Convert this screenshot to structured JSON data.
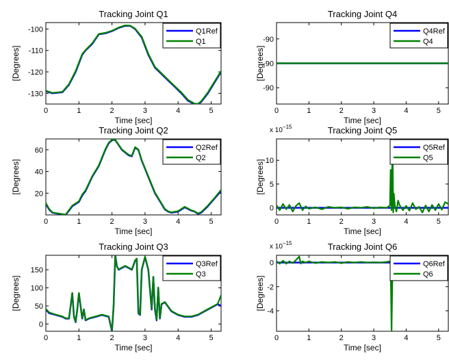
{
  "chart_data": [
    {
      "type": "line",
      "title": "Tracking Joint Q1",
      "xlabel": "Time [sec]",
      "ylabel": "[Degrees]",
      "xlim": [
        0,
        5.3
      ],
      "ylim": [
        -135,
        -97
      ],
      "xticks": [
        0,
        1,
        2,
        3,
        4,
        5
      ],
      "yticks": [
        -130,
        -120,
        -110,
        -100
      ],
      "ytick_labels": [
        "-130",
        "-120",
        "-110",
        "-100"
      ],
      "exponent_label": "",
      "legend_position": "top-right",
      "series": [
        {
          "name": "Q1Ref",
          "color": "#0000ff",
          "x": [
            0,
            0.2,
            0.5,
            0.7,
            0.9,
            1.1,
            1.2,
            1.4,
            1.6,
            1.8,
            2.0,
            2.2,
            2.4,
            2.55,
            2.7,
            2.9,
            3.1,
            3.3,
            3.5,
            3.7,
            3.9,
            4.1,
            4.3,
            4.5,
            4.6,
            4.7,
            4.9,
            5.1,
            5.3
          ],
          "y": [
            -129,
            -130,
            -129.5,
            -126,
            -120,
            -112,
            -110,
            -107,
            -102.5,
            -102,
            -101,
            -99.5,
            -98.5,
            -98.5,
            -100,
            -104,
            -112,
            -118,
            -121,
            -124,
            -127,
            -130,
            -133.5,
            -135,
            -135,
            -134,
            -130,
            -125,
            -120
          ]
        },
        {
          "name": "Q1",
          "color": "#008000",
          "x": [
            0,
            0.2,
            0.5,
            0.7,
            0.9,
            1.1,
            1.2,
            1.4,
            1.6,
            1.8,
            2.0,
            2.2,
            2.4,
            2.55,
            2.7,
            2.9,
            3.1,
            3.3,
            3.5,
            3.7,
            3.9,
            4.1,
            4.3,
            4.5,
            4.6,
            4.7,
            4.9,
            5.1,
            5.3
          ],
          "y": [
            -128.8,
            -129.8,
            -129.3,
            -125.7,
            -119.6,
            -111.7,
            -109.8,
            -106.7,
            -102.3,
            -101.8,
            -100.8,
            -99.3,
            -98.3,
            -98.4,
            -99.8,
            -103.6,
            -111.6,
            -117.7,
            -120.7,
            -123.7,
            -126.7,
            -129.6,
            -133.1,
            -134.8,
            -134.9,
            -133.7,
            -129.6,
            -124.6,
            -119.6
          ]
        }
      ]
    },
    {
      "type": "line",
      "title": "Tracking Joint Q4",
      "xlabel": "Time [sec]",
      "ylabel": "[Degrees]",
      "xlim": [
        0,
        5.3
      ],
      "ylim": [
        0,
        1
      ],
      "xticks": [
        0,
        1,
        2,
        3,
        4,
        5
      ],
      "yticks": [
        0.2,
        0.5,
        0.8
      ],
      "ytick_labels": [
        "-90",
        "-90",
        "-90"
      ],
      "exponent_label": "",
      "legend_position": "top-right",
      "series": [
        {
          "name": "Q4Ref",
          "color": "#0000ff",
          "x": [
            0,
            5.3
          ],
          "y": [
            0.5,
            0.5
          ]
        },
        {
          "name": "Q4",
          "color": "#008000",
          "x": [
            0,
            5.3
          ],
          "y": [
            0.5,
            0.5
          ]
        }
      ]
    },
    {
      "type": "line",
      "title": "Tracking Joint Q2",
      "xlabel": "Time [sec]",
      "ylabel": "[Degrees]",
      "xlim": [
        0,
        5.3
      ],
      "ylim": [
        0,
        70
      ],
      "xticks": [
        0,
        1,
        2,
        3,
        4,
        5
      ],
      "yticks": [
        20,
        40,
        60
      ],
      "ytick_labels": [
        "20",
        "40",
        "60"
      ],
      "exponent_label": "",
      "legend_position": "top-right",
      "series": [
        {
          "name": "Q2Ref",
          "color": "#0000ff",
          "x": [
            0,
            0.1,
            0.2,
            0.4,
            0.6,
            0.7,
            0.8,
            1.0,
            1.1,
            1.2,
            1.4,
            1.6,
            1.8,
            1.9,
            2.0,
            2.1,
            2.3,
            2.5,
            2.6,
            2.7,
            2.8,
            2.9,
            3.1,
            3.3,
            3.5,
            3.6,
            3.7,
            3.8,
            4.0,
            4.2,
            4.4,
            4.5,
            4.6,
            4.7,
            4.9,
            5.1,
            5.3
          ],
          "y": [
            10,
            5,
            2,
            1,
            0,
            4,
            8,
            12,
            18,
            22,
            35,
            45,
            60,
            66,
            69,
            69,
            60,
            55,
            54,
            62,
            60,
            50,
            35,
            20,
            10,
            5,
            3,
            2,
            3,
            7,
            4,
            3,
            1,
            2,
            8,
            15,
            22
          ]
        },
        {
          "name": "Q2",
          "color": "#008000",
          "x": [
            0,
            0.1,
            0.2,
            0.4,
            0.6,
            0.7,
            0.8,
            1.0,
            1.1,
            1.2,
            1.4,
            1.6,
            1.8,
            1.9,
            2.0,
            2.1,
            2.3,
            2.5,
            2.6,
            2.7,
            2.8,
            2.9,
            3.1,
            3.3,
            3.5,
            3.6,
            3.7,
            3.8,
            4.0,
            4.2,
            4.4,
            4.5,
            4.6,
            4.7,
            4.9,
            5.1,
            5.3
          ],
          "y": [
            11,
            5.5,
            2.3,
            1.2,
            0.3,
            4.5,
            8.6,
            12.6,
            18.8,
            22.7,
            35.5,
            45.6,
            60.5,
            66.5,
            69.3,
            69.2,
            60.3,
            55.5,
            54.4,
            62.5,
            60.2,
            50.4,
            35.5,
            20.6,
            10.5,
            5.5,
            3.3,
            2.4,
            3.5,
            7.5,
            4.3,
            3.3,
            1.3,
            2.6,
            8.6,
            15.5,
            23
          ]
        }
      ]
    },
    {
      "type": "line",
      "title": "Tracking Joint Q5",
      "xlabel": "Time [sec]",
      "ylabel": "[Degrees]",
      "xlim": [
        0,
        5.3
      ],
      "ylim": [
        -1.5,
        14.5
      ],
      "xticks": [
        0,
        1,
        2,
        3,
        4,
        5
      ],
      "yticks": [
        0,
        5,
        10
      ],
      "ytick_labels": [
        "0",
        "5",
        "10"
      ],
      "exponent_label": "x 10",
      "exponent_power": "−15",
      "legend_position": "top-right",
      "series": [
        {
          "name": "Q5Ref",
          "color": "#0000ff",
          "x": [
            0,
            5.3
          ],
          "y": [
            0,
            0
          ]
        },
        {
          "name": "Q5",
          "color": "#008000",
          "x": [
            0,
            0.1,
            0.2,
            0.3,
            0.4,
            0.5,
            0.6,
            0.7,
            0.8,
            0.9,
            1.0,
            1.2,
            1.4,
            1.6,
            1.8,
            2.0,
            2.2,
            2.4,
            2.6,
            2.8,
            3.0,
            3.2,
            3.4,
            3.5,
            3.52,
            3.55,
            3.58,
            3.6,
            3.62,
            3.65,
            3.7,
            3.75,
            3.8,
            3.9,
            4.0,
            4.1,
            4.2,
            4.3,
            4.4,
            4.5,
            4.6,
            4.7,
            4.8,
            4.9,
            5.0,
            5.1,
            5.2,
            5.3
          ],
          "y": [
            0.5,
            -0.5,
            0.8,
            -0.3,
            0.6,
            -0.8,
            0.4,
            1.0,
            -0.5,
            0.3,
            -0.2,
            0.1,
            -0.3,
            0.2,
            0.0,
            0.1,
            -0.2,
            0.1,
            0.0,
            0.2,
            -0.1,
            0.1,
            0.0,
            0.5,
            8.0,
            -0.5,
            14.5,
            -1.0,
            3.0,
            0.5,
            -0.8,
            1.5,
            0.5,
            -0.5,
            0.4,
            -0.6,
            1.0,
            -0.3,
            0.2,
            -1.0,
            0.5,
            -0.8,
            0.6,
            -0.5,
            0.8,
            -0.4,
            1.2,
            0.8
          ]
        }
      ]
    },
    {
      "type": "line",
      "title": "Tracking Joint Q3",
      "xlabel": "Time [sec]",
      "ylabel": "[Degrees]",
      "xlim": [
        0,
        5.3
      ],
      "ylim": [
        -20,
        190
      ],
      "xticks": [
        0,
        1,
        2,
        3,
        4,
        5
      ],
      "yticks": [
        0,
        50,
        100,
        150
      ],
      "ytick_labels": [
        "0",
        "50",
        "100",
        "150"
      ],
      "exponent_label": "",
      "legend_position": "top-right",
      "series": [
        {
          "name": "Q3Ref",
          "color": "#0000ff",
          "x": [
            0,
            0.1,
            0.3,
            0.5,
            0.6,
            0.7,
            0.8,
            0.85,
            0.9,
            0.95,
            1.0,
            1.1,
            1.15,
            1.2,
            1.3,
            1.5,
            1.7,
            1.9,
            2.0,
            2.05,
            2.1,
            2.15,
            2.2,
            2.3,
            2.4,
            2.5,
            2.6,
            2.7,
            2.75,
            2.8,
            2.85,
            2.9,
            3.0,
            3.1,
            3.2,
            3.25,
            3.3,
            3.35,
            3.4,
            3.45,
            3.5,
            3.6,
            3.8,
            4.0,
            4.2,
            4.4,
            4.6,
            4.8,
            5.0,
            5.2,
            5.3
          ],
          "y": [
            40,
            30,
            25,
            20,
            15,
            15,
            85,
            20,
            5,
            40,
            85,
            15,
            40,
            10,
            15,
            20,
            25,
            20,
            -20,
            50,
            190,
            160,
            150,
            155,
            160,
            155,
            150,
            175,
            180,
            30,
            25,
            150,
            185,
            150,
            40,
            130,
            40,
            10,
            100,
            15,
            55,
            60,
            35,
            25,
            20,
            20,
            25,
            35,
            45,
            55,
            50
          ]
        },
        {
          "name": "Q3",
          "color": "#008000",
          "x": [
            0,
            0.1,
            0.3,
            0.5,
            0.6,
            0.7,
            0.8,
            0.85,
            0.9,
            0.95,
            1.0,
            1.1,
            1.15,
            1.2,
            1.3,
            1.5,
            1.7,
            1.9,
            2.0,
            2.05,
            2.1,
            2.15,
            2.2,
            2.3,
            2.4,
            2.5,
            2.6,
            2.7,
            2.75,
            2.8,
            2.85,
            2.9,
            3.0,
            3.1,
            3.2,
            3.25,
            3.3,
            3.35,
            3.4,
            3.45,
            3.5,
            3.6,
            3.8,
            4.0,
            4.2,
            4.4,
            4.6,
            4.8,
            5.0,
            5.2,
            5.3
          ],
          "y": [
            42,
            32,
            26,
            21,
            16,
            16,
            86,
            22,
            6,
            41,
            86,
            16,
            41,
            11,
            16,
            21,
            26,
            21,
            -18,
            52,
            188,
            158,
            151,
            156,
            161,
            156,
            151,
            176,
            181,
            32,
            26,
            151,
            186,
            151,
            42,
            131,
            42,
            12,
            101,
            16,
            56,
            61,
            36,
            26,
            21,
            21,
            26,
            36,
            46,
            56,
            80
          ]
        }
      ]
    },
    {
      "type": "line",
      "title": "Tracking Joint Q6",
      "xlabel": "Time [sec]",
      "ylabel": "[Degrees]",
      "xlim": [
        0,
        5.3
      ],
      "ylim": [
        -5.7,
        0.6
      ],
      "xticks": [
        0,
        1,
        2,
        3,
        4,
        5
      ],
      "yticks": [
        -4,
        -2,
        0
      ],
      "ytick_labels": [
        "-4",
        "-2",
        "0"
      ],
      "exponent_label": "x 10",
      "exponent_power": "−15",
      "legend_position": "top-right",
      "series": [
        {
          "name": "Q6Ref",
          "color": "#0000ff",
          "x": [
            0,
            5.3
          ],
          "y": [
            0,
            0
          ]
        },
        {
          "name": "Q6",
          "color": "#008000",
          "x": [
            0,
            0.1,
            0.2,
            0.3,
            0.4,
            0.5,
            0.6,
            0.7,
            0.75,
            0.8,
            0.9,
            1.0,
            1.2,
            1.4,
            1.6,
            1.8,
            2.0,
            2.2,
            2.4,
            2.6,
            2.8,
            3.0,
            3.2,
            3.4,
            3.5,
            3.52,
            3.55,
            3.58,
            3.6,
            3.65,
            3.7,
            3.8,
            4.0,
            4.2,
            4.4,
            4.6,
            4.8,
            5.0,
            5.2,
            5.3
          ],
          "y": [
            0.1,
            -0.1,
            0.15,
            -0.1,
            0.1,
            -0.05,
            0.2,
            0.5,
            -0.1,
            0.1,
            0.0,
            0.1,
            -0.05,
            0.05,
            0.0,
            0.05,
            -0.05,
            0.05,
            0.0,
            0.05,
            0.0,
            0.02,
            0.0,
            0.05,
            0.1,
            -0.2,
            -5.7,
            -0.3,
            0.1,
            0.0,
            0.05,
            0.0,
            0.0,
            0.0,
            0.0,
            0.0,
            0.0,
            0.0,
            0.0,
            0.0
          ]
        }
      ]
    }
  ]
}
